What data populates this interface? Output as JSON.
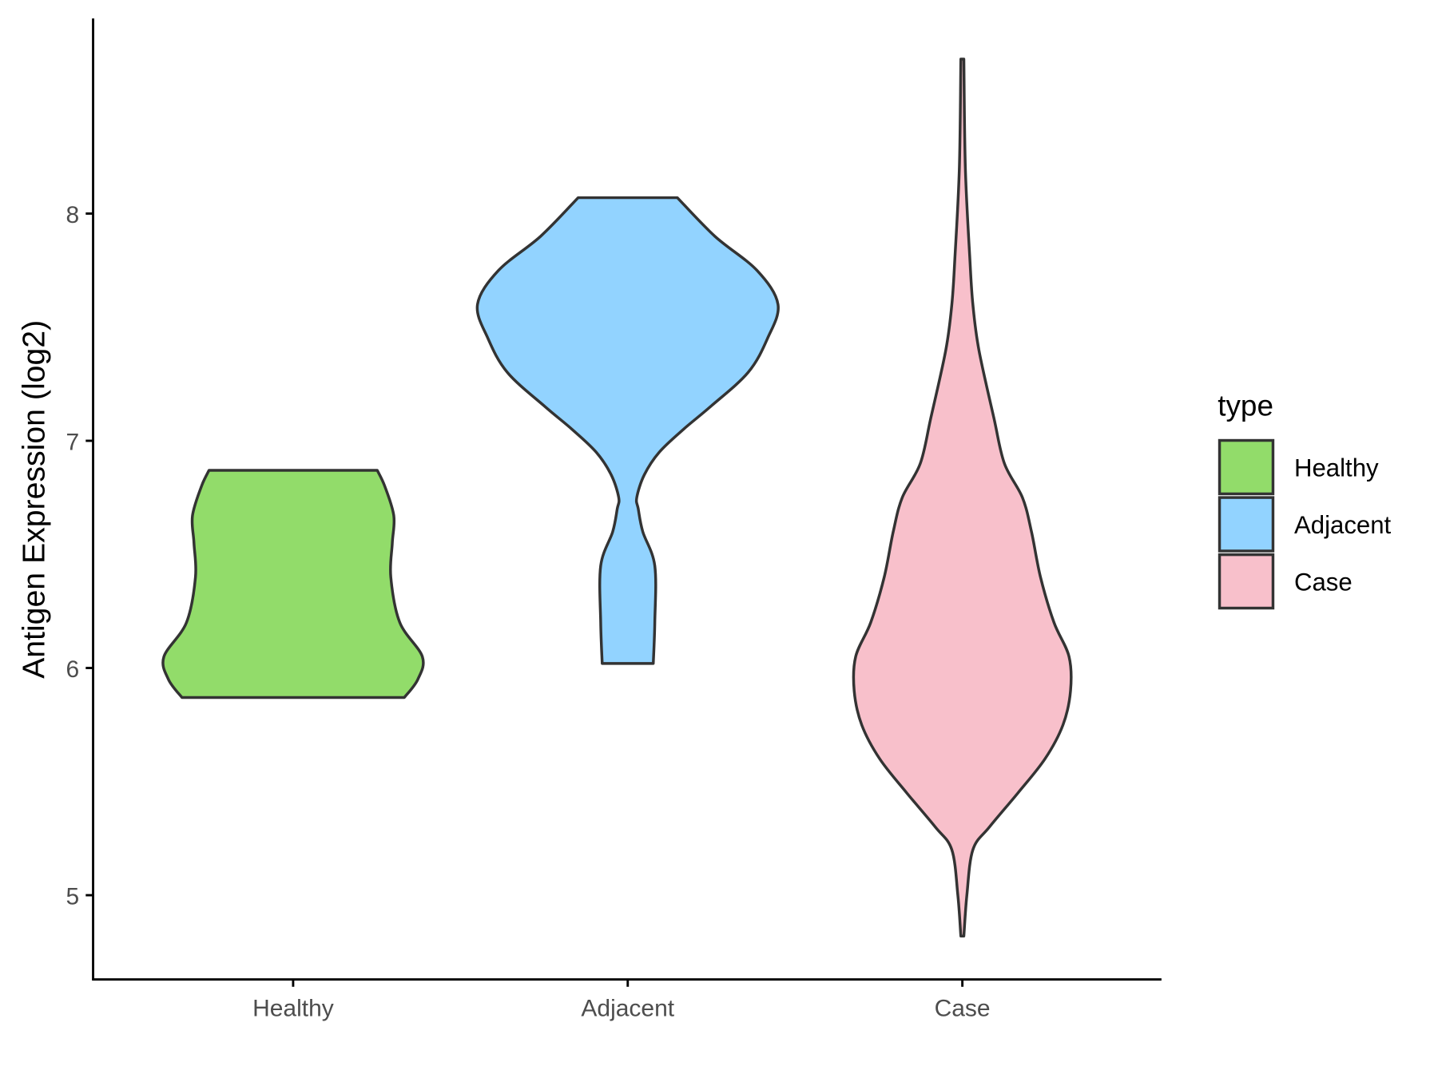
{
  "chart_data": {
    "type": "violin",
    "title": "",
    "xlabel": "",
    "ylabel": "Antigen Expression (log2)",
    "categories": [
      "Healthy",
      "Adjacent",
      "Case"
    ],
    "y_ticks": [
      5,
      6,
      7,
      8
    ],
    "ylim": [
      4.62,
      8.85
    ],
    "grid": false,
    "legend": {
      "title": "type",
      "placement": "right",
      "entries": [
        "Healthy",
        "Adjacent",
        "Case"
      ]
    },
    "colors": {
      "Healthy": "#92DC6A",
      "Adjacent": "#92D3FF",
      "Case": "#F8C0CB",
      "outline": "#333333"
    },
    "series": [
      {
        "name": "Healthy",
        "density_profile": [
          [
            5.87,
            0.74
          ],
          [
            5.95,
            0.83
          ],
          [
            6.05,
            0.86
          ],
          [
            6.2,
            0.71
          ],
          [
            6.4,
            0.65
          ],
          [
            6.55,
            0.66
          ],
          [
            6.67,
            0.67
          ],
          [
            6.8,
            0.61
          ],
          [
            6.87,
            0.56
          ]
        ]
      },
      {
        "name": "Adjacent",
        "density_profile": [
          [
            6.02,
            0.17
          ],
          [
            6.2,
            0.18
          ],
          [
            6.45,
            0.18
          ],
          [
            6.6,
            0.1
          ],
          [
            6.7,
            0.07
          ],
          [
            6.75,
            0.06
          ],
          [
            6.85,
            0.11
          ],
          [
            6.95,
            0.21
          ],
          [
            7.05,
            0.37
          ],
          [
            7.15,
            0.55
          ],
          [
            7.3,
            0.8
          ],
          [
            7.45,
            0.93
          ],
          [
            7.6,
            1.0
          ],
          [
            7.75,
            0.86
          ],
          [
            7.9,
            0.58
          ],
          [
            8.07,
            0.33
          ]
        ]
      },
      {
        "name": "Case",
        "density_profile": [
          [
            4.82,
            0.01
          ],
          [
            5.0,
            0.03
          ],
          [
            5.2,
            0.07
          ],
          [
            5.3,
            0.18
          ],
          [
            5.45,
            0.37
          ],
          [
            5.6,
            0.55
          ],
          [
            5.75,
            0.67
          ],
          [
            5.9,
            0.72
          ],
          [
            6.05,
            0.71
          ],
          [
            6.2,
            0.61
          ],
          [
            6.4,
            0.52
          ],
          [
            6.6,
            0.46
          ],
          [
            6.75,
            0.4
          ],
          [
            6.9,
            0.28
          ],
          [
            7.1,
            0.21
          ],
          [
            7.4,
            0.11
          ],
          [
            7.6,
            0.07
          ],
          [
            7.8,
            0.05
          ],
          [
            8.2,
            0.02
          ],
          [
            8.68,
            0.01
          ]
        ]
      }
    ]
  }
}
